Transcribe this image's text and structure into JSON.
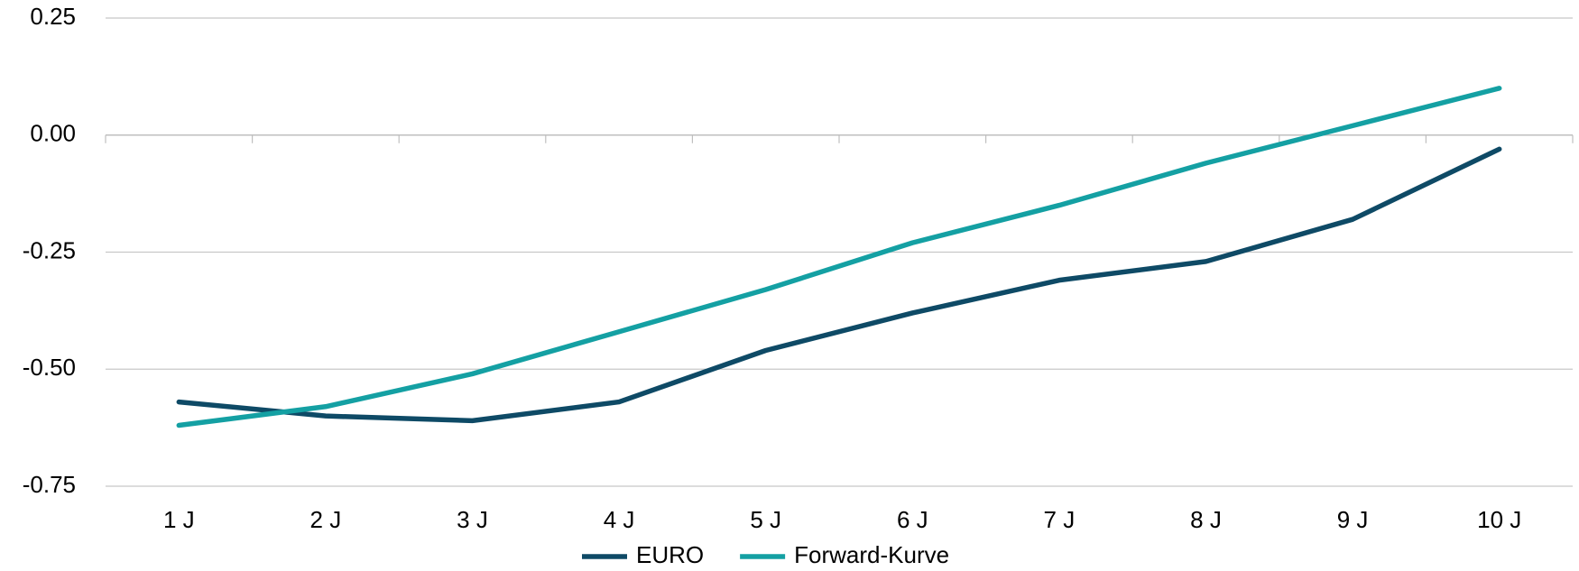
{
  "chart_data": {
    "type": "line",
    "categories": [
      "1 J",
      "2 J",
      "3 J",
      "4 J",
      "5 J",
      "6 J",
      "7 J",
      "8 J",
      "9 J",
      "10 J"
    ],
    "series": [
      {
        "name": "EURO",
        "color": "#0e4a66",
        "values": [
          -0.57,
          -0.6,
          -0.61,
          -0.57,
          -0.46,
          -0.38,
          -0.31,
          -0.27,
          -0.18,
          -0.03
        ]
      },
      {
        "name": "Forward-Kurve",
        "color": "#14a0a3",
        "values": [
          -0.62,
          -0.58,
          -0.51,
          -0.42,
          -0.33,
          -0.23,
          -0.15,
          -0.06,
          0.02,
          0.1
        ]
      }
    ],
    "ylim": [
      -0.75,
      0.25
    ],
    "yticks": [
      -0.75,
      {
        "value": -0.5,
        "label": "-0.50"
      },
      -0.25,
      {
        "value": 0,
        "label": "0.00"
      },
      0.25
    ],
    "grid": true,
    "legend": "bottom"
  }
}
